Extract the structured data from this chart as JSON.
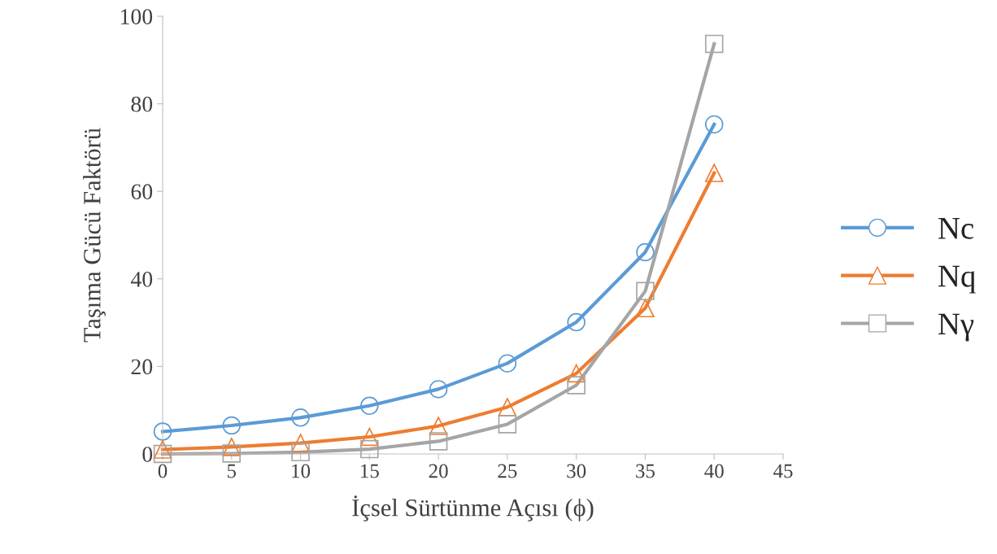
{
  "chart_data": {
    "type": "line",
    "xlabel": "İçsel Sürtünme Açısı (ϕ)",
    "ylabel": "Taşıma Gücü Faktörü",
    "x": [
      0,
      5,
      10,
      15,
      20,
      25,
      30,
      35,
      40
    ],
    "series": [
      {
        "name": "Nc",
        "color": "#5b9bd5",
        "marker": "circle",
        "values": [
          5.1,
          6.5,
          8.3,
          11.0,
          14.8,
          20.7,
          30.1,
          46.1,
          75.3
        ]
      },
      {
        "name": "Nq",
        "color": "#ed7d31",
        "marker": "triangle",
        "values": [
          1.0,
          1.6,
          2.5,
          3.9,
          6.4,
          10.7,
          18.4,
          33.3,
          64.2
        ]
      },
      {
        "name": "Nγ",
        "color": "#a5a5a5",
        "marker": "square",
        "values": [
          0.0,
          0.1,
          0.4,
          1.1,
          2.9,
          6.8,
          15.7,
          37.2,
          93.7
        ]
      }
    ],
    "xlim": [
      0,
      45
    ],
    "xticks": [
      0,
      5,
      10,
      15,
      20,
      25,
      30,
      35,
      40,
      45
    ],
    "ylim": [
      0,
      100
    ],
    "yticks": [
      0,
      20,
      40,
      60,
      80,
      100
    ],
    "grid": false,
    "legend": "right",
    "line_style": "solid"
  }
}
